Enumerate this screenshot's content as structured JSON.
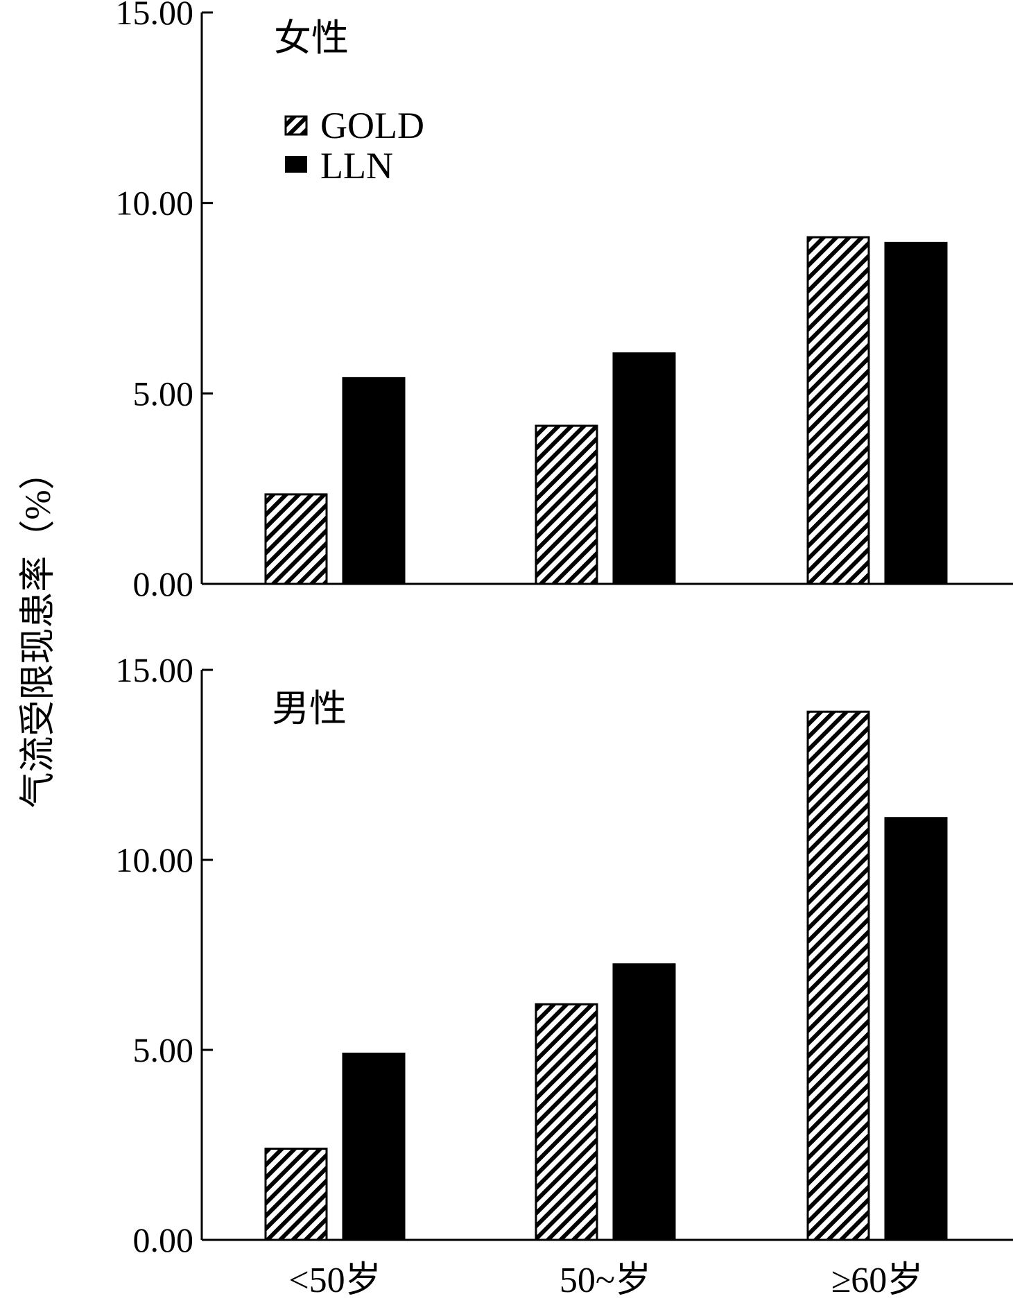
{
  "figure": {
    "ylabel": "气流受限现患率（%）"
  },
  "legend": [
    {
      "label": "GOLD",
      "pattern": "hatched"
    },
    {
      "label": "LLN",
      "pattern": "solid"
    }
  ],
  "chart_data": [
    {
      "type": "bar",
      "title": "女性",
      "categories": [
        "<50岁",
        "50~岁",
        "≥60岁"
      ],
      "series": [
        {
          "name": "GOLD",
          "values": [
            2.35,
            4.15,
            9.1
          ]
        },
        {
          "name": "LLN",
          "values": [
            5.4,
            6.05,
            8.95
          ]
        }
      ],
      "yticks": [
        "0.00",
        "5.00",
        "10.00",
        "15.00"
      ],
      "ylim": [
        0,
        15
      ],
      "xlabel": "",
      "ylabel": "气流受限现患率（%）",
      "grid": false,
      "legend_position": "top-left"
    },
    {
      "type": "bar",
      "title": "男性",
      "categories": [
        "<50岁",
        "50~岁",
        "≥60岁"
      ],
      "series": [
        {
          "name": "GOLD",
          "values": [
            2.4,
            6.2,
            13.9
          ]
        },
        {
          "name": "LLN",
          "values": [
            4.9,
            7.25,
            11.1
          ]
        }
      ],
      "yticks": [
        "0.00",
        "5.00",
        "10.00",
        "15.00"
      ],
      "ylim": [
        0,
        15
      ],
      "xlabel": "",
      "ylabel": "气流受限现患率（%）",
      "grid": false,
      "legend_position": "none"
    }
  ],
  "colors": {
    "solid_bar": "#000000",
    "hatch": "#000000",
    "axis": "#000000",
    "background": "#ffffff"
  }
}
